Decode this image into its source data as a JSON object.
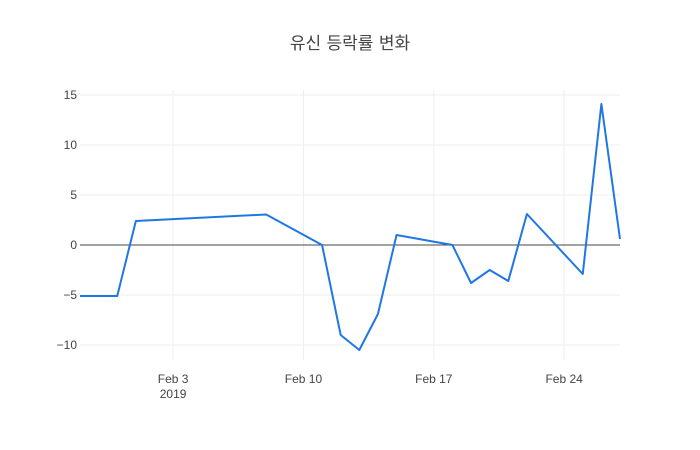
{
  "chart_data": {
    "type": "line",
    "title": "유신 등락률 변화",
    "xlabel": "",
    "ylabel": "",
    "ylim": [
      -11.5,
      15.5
    ],
    "xlim": [
      "2019-01-29",
      "2019-02-27"
    ],
    "grid": true,
    "legend": "none",
    "x_ticks": [
      {
        "date": "2019-02-03",
        "label": "Feb 3",
        "sublabel": "2019"
      },
      {
        "date": "2019-02-10",
        "label": "Feb 10",
        "sublabel": ""
      },
      {
        "date": "2019-02-17",
        "label": "Feb 17",
        "sublabel": ""
      },
      {
        "date": "2019-02-24",
        "label": "Feb 24",
        "sublabel": ""
      }
    ],
    "y_ticks": [
      {
        "value": 15,
        "label": "15"
      },
      {
        "value": 10,
        "label": "10"
      },
      {
        "value": 5,
        "label": "5"
      },
      {
        "value": 0,
        "label": "0"
      },
      {
        "value": -5,
        "label": "−5"
      },
      {
        "value": -10,
        "label": "−10"
      }
    ],
    "series": [
      {
        "color": "#1f77e4",
        "x": [
          "2019-01-29",
          "2019-01-31",
          "2019-02-01",
          "2019-02-08",
          "2019-02-11",
          "2019-02-12",
          "2019-02-13",
          "2019-02-14",
          "2019-02-15",
          "2019-02-18",
          "2019-02-19",
          "2019-02-20",
          "2019-02-21",
          "2019-02-22",
          "2019-02-25",
          "2019-02-26",
          "2019-02-27"
        ],
        "y": [
          -5.1,
          -5.1,
          2.4,
          3.05,
          0.0,
          -9.0,
          -10.5,
          -6.9,
          1.0,
          0.0,
          -3.8,
          -2.5,
          -3.6,
          3.1,
          -2.9,
          14.1,
          0.6
        ]
      }
    ]
  }
}
